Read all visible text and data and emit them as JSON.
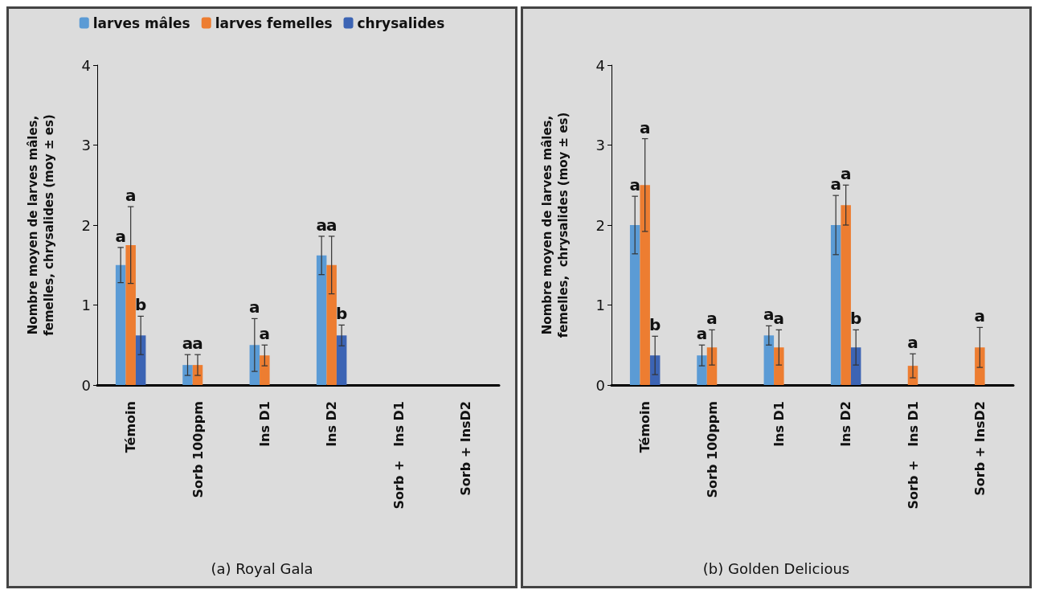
{
  "chart_data": [
    {
      "type": "bar",
      "title": "(a) Royal Gala",
      "ylabel": "Nombre moyen de larves mâles,\nfemelles, chrysalides (moy ± es)",
      "categories": [
        "Témoin",
        "Sorb 100ppm",
        "Ins D1",
        "Ins D2",
        "Sorb +   Ins D1",
        "Sorb + InsD2"
      ],
      "series": [
        {
          "name": "larves mâles",
          "color": "#5b9bd5",
          "values": [
            1.5,
            0.25,
            0.5,
            1.62,
            null,
            null
          ],
          "errors": [
            0.22,
            0.13,
            0.33,
            0.24,
            null,
            null
          ]
        },
        {
          "name": "larves femelles",
          "color": "#ed7d31",
          "values": [
            1.75,
            0.25,
            0.37,
            1.5,
            null,
            null
          ],
          "errors": [
            0.48,
            0.13,
            0.13,
            0.36,
            null,
            null
          ]
        },
        {
          "name": "chrysalides",
          "color": "#3c64b4",
          "values": [
            0.62,
            null,
            null,
            0.62,
            null,
            null
          ],
          "errors": [
            0.24,
            null,
            null,
            0.13,
            null,
            null
          ]
        }
      ],
      "annotations": [
        "a",
        "a",
        "b",
        "a",
        "a",
        "a",
        "a",
        "a",
        "a",
        "b"
      ],
      "ylim": [
        0,
        4
      ],
      "yticks": [
        0,
        1,
        2,
        3,
        4
      ],
      "grid": false,
      "legend": "top"
    },
    {
      "type": "bar",
      "title": "(b) Golden Delicious",
      "ylabel": "Nombre moyen de larves mâles,\nfemelles,  chrysalides (moy ± es)",
      "categories": [
        "Témoin",
        "Sorb 100ppm",
        "Ins D1",
        "Ins D2",
        "Sorb +   Ins D1",
        "Sorb + InsD2"
      ],
      "series": [
        {
          "color": "#5b9bd5",
          "values": [
            2.0,
            0.37,
            0.62,
            2.0,
            null,
            null
          ],
          "errors": [
            0.36,
            0.13,
            0.12,
            0.37,
            null,
            null
          ]
        },
        {
          "color": "#ed7d31",
          "values": [
            2.5,
            0.47,
            0.47,
            2.25,
            0.24,
            0.47
          ],
          "errors": [
            0.58,
            0.22,
            0.22,
            0.25,
            0.15,
            0.25
          ]
        },
        {
          "color": "#3c64b4",
          "values": [
            0.37,
            null,
            null,
            0.47,
            null,
            null
          ],
          "errors": [
            0.24,
            null,
            null,
            0.22,
            null,
            null
          ]
        }
      ],
      "annotations": [
        "a",
        "a",
        "b",
        "a",
        "a",
        "a",
        "a",
        "a",
        "a",
        "b",
        "a",
        "a"
      ],
      "ylim": [
        0,
        4
      ],
      "yticks": [
        0,
        1,
        2,
        3,
        4
      ],
      "grid": false,
      "legend": false
    }
  ]
}
